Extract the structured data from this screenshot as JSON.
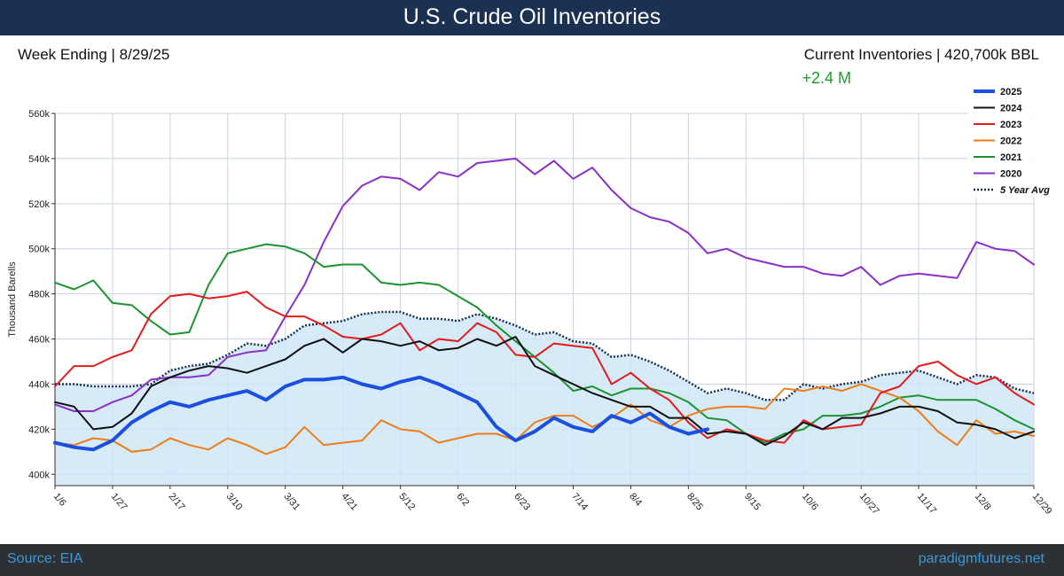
{
  "header": {
    "title": "U.S.  Crude Oil Inventories"
  },
  "subheader": {
    "week_label": "Week  Ending  | 8/29/25",
    "current_label": "Current Inventories | 420,700k BBL",
    "change": "+2.4 M",
    "change_color": "#1aa321"
  },
  "footer": {
    "source": "Source: EIA",
    "site": "paradigmfutures.net"
  },
  "colors": {
    "header_bg": "#1b3152",
    "footer_bg": "#2d3035",
    "band_fill": "#cfe6f7"
  },
  "chart_data": {
    "type": "line",
    "title": "",
    "xlabel": "",
    "ylabel": "Thousand Barells",
    "ylim": [
      395,
      560
    ],
    "yticks": [
      400,
      420,
      440,
      460,
      480,
      500,
      520,
      540,
      560
    ],
    "ytick_labels": [
      "400k",
      "420k",
      "440k",
      "460k",
      "480k",
      "500k",
      "520k",
      "540k",
      "560k"
    ],
    "x_ticks": [
      {
        "week": 0,
        "label": "1/6"
      },
      {
        "week": 3,
        "label": "1/27"
      },
      {
        "week": 6,
        "label": "2/17"
      },
      {
        "week": 9,
        "label": "3/10"
      },
      {
        "week": 12,
        "label": "3/31"
      },
      {
        "week": 15,
        "label": "4/21"
      },
      {
        "week": 18,
        "label": "5/12"
      },
      {
        "week": 21,
        "label": "6/2"
      },
      {
        "week": 24,
        "label": "6/23"
      },
      {
        "week": 27,
        "label": "7/14"
      },
      {
        "week": 30,
        "label": "8/4"
      },
      {
        "week": 33,
        "label": "8/25"
      },
      {
        "week": 36,
        "label": "9/15"
      },
      {
        "week": 39,
        "label": "10/6"
      },
      {
        "week": 42,
        "label": "10/27"
      },
      {
        "week": 45,
        "label": "11/17"
      },
      {
        "week": 48,
        "label": "12/8"
      },
      {
        "week": 51,
        "label": "12/29"
      }
    ],
    "xlim": [
      0,
      51
    ],
    "grid": true,
    "legend_position": "top-right",
    "series": [
      {
        "name": "2020",
        "color": "#8b2fc9",
        "width": 2,
        "values": [
          431,
          428,
          428,
          432,
          435,
          442,
          443,
          443,
          444,
          452,
          454,
          455,
          470,
          484,
          503,
          519,
          528,
          532,
          531,
          526,
          534,
          532,
          538,
          539,
          540,
          533,
          539,
          531,
          536,
          526,
          518,
          514,
          512,
          507,
          498,
          500,
          496,
          494,
          492,
          492,
          489,
          488,
          492,
          484,
          488,
          489,
          488,
          487,
          503,
          500,
          499,
          493
        ]
      },
      {
        "name": "2021",
        "color": "#1c9430",
        "width": 2,
        "values": [
          485,
          482,
          486,
          476,
          475,
          468,
          462,
          463,
          484,
          498,
          500,
          502,
          501,
          498,
          492,
          493,
          493,
          485,
          484,
          485,
          484,
          479,
          474,
          466,
          459,
          452,
          445,
          437,
          439,
          435,
          438,
          438,
          436,
          432,
          425,
          424,
          418,
          414,
          418,
          420,
          426,
          426,
          427,
          430,
          434,
          435,
          433,
          433,
          433,
          429,
          424,
          420
        ]
      },
      {
        "name": "2022",
        "color": "#ef7d1a",
        "width": 2,
        "values": [
          414,
          413,
          416,
          415,
          410,
          411,
          416,
          413,
          411,
          416,
          413,
          409,
          412,
          421,
          413,
          414,
          415,
          424,
          420,
          419,
          414,
          416,
          418,
          418,
          415,
          423,
          426,
          426,
          421,
          425,
          431,
          424,
          421,
          426,
          429,
          430,
          430,
          429,
          438,
          437,
          439,
          437,
          440,
          437,
          434,
          428,
          419,
          413,
          424,
          418,
          419,
          417
        ]
      },
      {
        "name": "2023",
        "color": "#e31b1b",
        "width": 2,
        "values": [
          439,
          448,
          448,
          452,
          455,
          471,
          479,
          480,
          478,
          479,
          481,
          474,
          470,
          470,
          466,
          461,
          460,
          462,
          467,
          455,
          460,
          459,
          467,
          463,
          453,
          452,
          458,
          457,
          456,
          440,
          445,
          438,
          433,
          423,
          416,
          420,
          418,
          415,
          414,
          424,
          420,
          421,
          422,
          436,
          439,
          448,
          450,
          444,
          440,
          443,
          436,
          431
        ]
      },
      {
        "name": "2024",
        "color": "#111111",
        "width": 2,
        "values": [
          432,
          430,
          420,
          421,
          427,
          439,
          443,
          446,
          448,
          447,
          445,
          448,
          451,
          457,
          460,
          454,
          460,
          459,
          457,
          459,
          455,
          456,
          460,
          457,
          461,
          448,
          444,
          440,
          436,
          433,
          430,
          430,
          425,
          425,
          418,
          419,
          418,
          413,
          417,
          423,
          420,
          425,
          425,
          427,
          430,
          430,
          428,
          423,
          422,
          420,
          416,
          419
        ]
      },
      {
        "name": "2025",
        "color": "#1a4fe0",
        "width": 4,
        "values": [
          414,
          412,
          411,
          415,
          423,
          428,
          432,
          430,
          433,
          435,
          437,
          433,
          439,
          442,
          442,
          443,
          440,
          438,
          441,
          443,
          440,
          436,
          432,
          421,
          415,
          419,
          425,
          421,
          419,
          426,
          423,
          427,
          421,
          418,
          420
        ]
      },
      {
        "name": "5 Year Avg",
        "color": "#1b3152",
        "width": 2.5,
        "dashed": true,
        "values": [
          440,
          440,
          439,
          439,
          439,
          440,
          446,
          448,
          449,
          453,
          458,
          457,
          460,
          466,
          467,
          468,
          471,
          472,
          472,
          469,
          469,
          468,
          471,
          469,
          466,
          462,
          463,
          459,
          458,
          452,
          453,
          450,
          446,
          441,
          436,
          438,
          436,
          433,
          433,
          440,
          438,
          440,
          441,
          444,
          445,
          446,
          443,
          440,
          444,
          443,
          438,
          436
        ]
      }
    ]
  }
}
